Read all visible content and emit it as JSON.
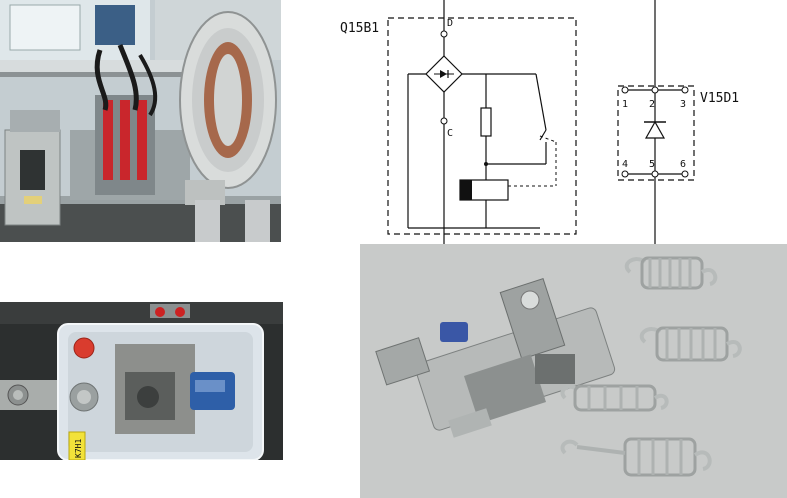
{
  "schematic": {
    "breaker_label": "Q15B1",
    "terminal_d": "D",
    "terminal_c": "C",
    "diode_block_label": "V15D1",
    "pins": [
      "1",
      "2",
      "3",
      "4",
      "5",
      "6"
    ]
  },
  "relay_photo": {
    "tag_text": "K7H1"
  }
}
